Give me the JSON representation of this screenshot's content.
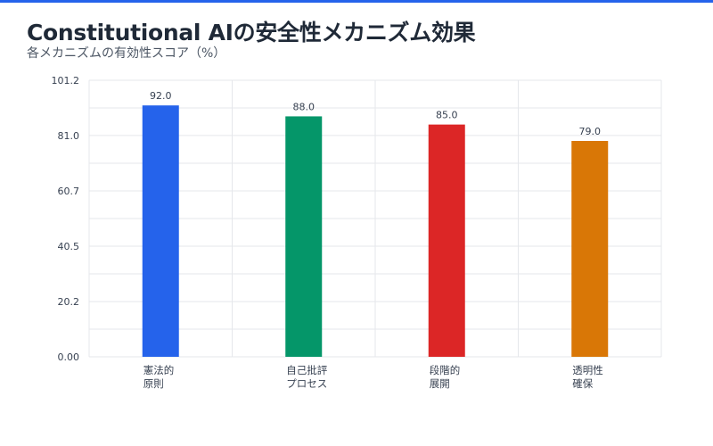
{
  "chart_data": {
    "type": "bar",
    "title": "Constitutional AIの安全性メカニズム効果",
    "subtitle": "各メカニズムの有効性スコア（%）",
    "categories": [
      [
        "憲法的",
        "原則"
      ],
      [
        "自己批評",
        "プロセス"
      ],
      [
        "段階的",
        "展開"
      ],
      [
        "透明性",
        "確保"
      ]
    ],
    "values": [
      92.0,
      88.0,
      85.0,
      79.0
    ],
    "value_labels": [
      "92.0",
      "88.0",
      "85.0",
      "79.0"
    ],
    "ylim": [
      0,
      101.2
    ],
    "yticks": [
      0,
      20.2,
      40.5,
      60.7,
      81.0,
      101.2
    ],
    "ytick_labels": [
      "0.00",
      "20.2",
      "40.5",
      "60.7",
      "81.0",
      "101.2"
    ],
    "grid": true,
    "colors": [
      "#2563eb",
      "#059669",
      "#dc2626",
      "#d97706"
    ]
  },
  "theme": {
    "accent": "#2563eb",
    "grid": "#e5e7eb",
    "tick_text": "#374151",
    "value_text": "#374151"
  }
}
